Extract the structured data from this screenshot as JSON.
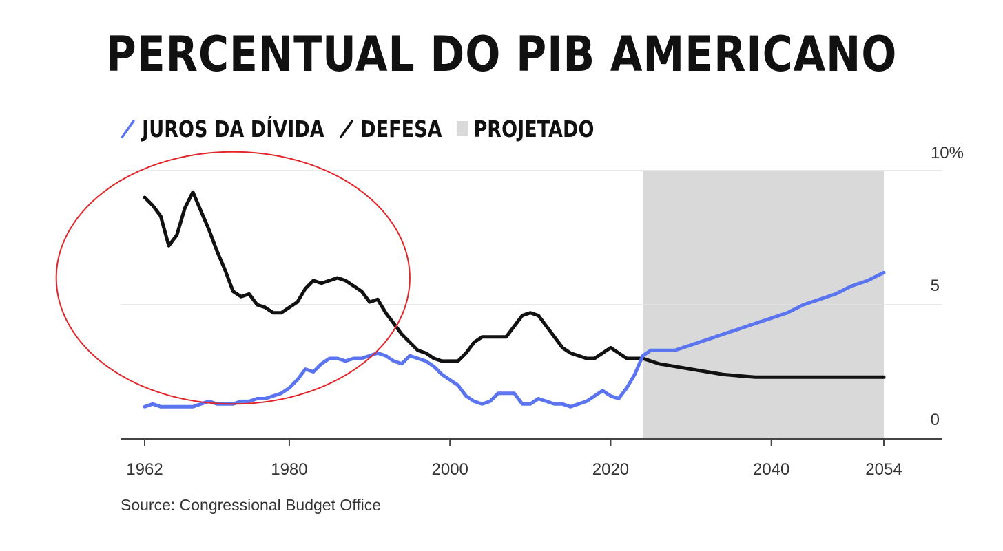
{
  "title": "PERCENTUAL DO PIB AMERICANO",
  "legend": {
    "juros": "JUROS DA DÍVIDA",
    "defesa": "DEFESA",
    "projetado": "PROJETADO"
  },
  "source": "Source: Congressional Budget Office",
  "colors": {
    "juros": "#5b74f0",
    "defesa": "#111111",
    "projetado": "#d9d9d9",
    "highlight_circle": "#e0262a",
    "grid": "#e3e3e3",
    "axis": "#444444"
  },
  "chart_data": {
    "type": "line",
    "x_range": [
      1962,
      2054
    ],
    "y_range": [
      0,
      10
    ],
    "x_ticks": [
      1962,
      1980,
      2000,
      2020,
      2040,
      2054
    ],
    "y_ticks": [
      {
        "value": 0,
        "label": "0"
      },
      {
        "value": 5,
        "label": "5"
      },
      {
        "value": 10,
        "label": "10%"
      }
    ],
    "gridlines": [
      5,
      10
    ],
    "projected_span": [
      2024,
      2054
    ],
    "series": [
      {
        "name": "DEFESA",
        "key": "defesa",
        "points": [
          [
            1962,
            9.0
          ],
          [
            1963,
            8.7
          ],
          [
            1964,
            8.3
          ],
          [
            1965,
            7.2
          ],
          [
            1966,
            7.6
          ],
          [
            1967,
            8.6
          ],
          [
            1968,
            9.2
          ],
          [
            1969,
            8.5
          ],
          [
            1970,
            7.8
          ],
          [
            1971,
            7.0
          ],
          [
            1972,
            6.3
          ],
          [
            1973,
            5.5
          ],
          [
            1974,
            5.3
          ],
          [
            1975,
            5.4
          ],
          [
            1976,
            5.0
          ],
          [
            1977,
            4.9
          ],
          [
            1978,
            4.7
          ],
          [
            1979,
            4.7
          ],
          [
            1980,
            4.9
          ],
          [
            1981,
            5.1
          ],
          [
            1982,
            5.6
          ],
          [
            1983,
            5.9
          ],
          [
            1984,
            5.8
          ],
          [
            1985,
            5.9
          ],
          [
            1986,
            6.0
          ],
          [
            1987,
            5.9
          ],
          [
            1988,
            5.7
          ],
          [
            1989,
            5.5
          ],
          [
            1990,
            5.1
          ],
          [
            1991,
            5.2
          ],
          [
            1992,
            4.7
          ],
          [
            1993,
            4.3
          ],
          [
            1994,
            3.9
          ],
          [
            1995,
            3.6
          ],
          [
            1996,
            3.3
          ],
          [
            1997,
            3.2
          ],
          [
            1998,
            3.0
          ],
          [
            1999,
            2.9
          ],
          [
            2000,
            2.9
          ],
          [
            2001,
            2.9
          ],
          [
            2002,
            3.2
          ],
          [
            2003,
            3.6
          ],
          [
            2004,
            3.8
          ],
          [
            2005,
            3.8
          ],
          [
            2006,
            3.8
          ],
          [
            2007,
            3.8
          ],
          [
            2008,
            4.2
          ],
          [
            2009,
            4.6
          ],
          [
            2010,
            4.7
          ],
          [
            2011,
            4.6
          ],
          [
            2012,
            4.2
          ],
          [
            2013,
            3.8
          ],
          [
            2014,
            3.4
          ],
          [
            2015,
            3.2
          ],
          [
            2016,
            3.1
          ],
          [
            2017,
            3.0
          ],
          [
            2018,
            3.0
          ],
          [
            2019,
            3.2
          ],
          [
            2020,
            3.4
          ],
          [
            2021,
            3.2
          ],
          [
            2022,
            3.0
          ],
          [
            2023,
            3.0
          ],
          [
            2024,
            3.0
          ],
          [
            2026,
            2.8
          ],
          [
            2028,
            2.7
          ],
          [
            2030,
            2.6
          ],
          [
            2032,
            2.5
          ],
          [
            2034,
            2.4
          ],
          [
            2036,
            2.35
          ],
          [
            2038,
            2.3
          ],
          [
            2040,
            2.3
          ],
          [
            2042,
            2.3
          ],
          [
            2044,
            2.3
          ],
          [
            2046,
            2.3
          ],
          [
            2048,
            2.3
          ],
          [
            2050,
            2.3
          ],
          [
            2052,
            2.3
          ],
          [
            2054,
            2.3
          ]
        ]
      },
      {
        "name": "JUROS DA DÍVIDA",
        "key": "juros",
        "points": [
          [
            1962,
            1.2
          ],
          [
            1963,
            1.3
          ],
          [
            1964,
            1.2
          ],
          [
            1965,
            1.2
          ],
          [
            1966,
            1.2
          ],
          [
            1967,
            1.2
          ],
          [
            1968,
            1.2
          ],
          [
            1969,
            1.3
          ],
          [
            1970,
            1.4
          ],
          [
            1971,
            1.3
          ],
          [
            1972,
            1.3
          ],
          [
            1973,
            1.3
          ],
          [
            1974,
            1.4
          ],
          [
            1975,
            1.4
          ],
          [
            1976,
            1.5
          ],
          [
            1977,
            1.5
          ],
          [
            1978,
            1.6
          ],
          [
            1979,
            1.7
          ],
          [
            1980,
            1.9
          ],
          [
            1981,
            2.2
          ],
          [
            1982,
            2.6
          ],
          [
            1983,
            2.5
          ],
          [
            1984,
            2.8
          ],
          [
            1985,
            3.0
          ],
          [
            1986,
            3.0
          ],
          [
            1987,
            2.9
          ],
          [
            1988,
            3.0
          ],
          [
            1989,
            3.0
          ],
          [
            1990,
            3.1
          ],
          [
            1991,
            3.2
          ],
          [
            1992,
            3.1
          ],
          [
            1993,
            2.9
          ],
          [
            1994,
            2.8
          ],
          [
            1995,
            3.1
          ],
          [
            1996,
            3.0
          ],
          [
            1997,
            2.9
          ],
          [
            1998,
            2.7
          ],
          [
            1999,
            2.4
          ],
          [
            2000,
            2.2
          ],
          [
            2001,
            2.0
          ],
          [
            2002,
            1.6
          ],
          [
            2003,
            1.4
          ],
          [
            2004,
            1.3
          ],
          [
            2005,
            1.4
          ],
          [
            2006,
            1.7
          ],
          [
            2007,
            1.7
          ],
          [
            2008,
            1.7
          ],
          [
            2009,
            1.3
          ],
          [
            2010,
            1.3
          ],
          [
            2011,
            1.5
          ],
          [
            2012,
            1.4
          ],
          [
            2013,
            1.3
          ],
          [
            2014,
            1.3
          ],
          [
            2015,
            1.2
          ],
          [
            2016,
            1.3
          ],
          [
            2017,
            1.4
          ],
          [
            2018,
            1.6
          ],
          [
            2019,
            1.8
          ],
          [
            2020,
            1.6
          ],
          [
            2021,
            1.5
          ],
          [
            2022,
            1.9
          ],
          [
            2023,
            2.4
          ],
          [
            2024,
            3.1
          ],
          [
            2025,
            3.3
          ],
          [
            2026,
            3.3
          ],
          [
            2028,
            3.3
          ],
          [
            2030,
            3.5
          ],
          [
            2032,
            3.7
          ],
          [
            2034,
            3.9
          ],
          [
            2036,
            4.1
          ],
          [
            2038,
            4.3
          ],
          [
            2040,
            4.5
          ],
          [
            2042,
            4.7
          ],
          [
            2044,
            5.0
          ],
          [
            2046,
            5.2
          ],
          [
            2048,
            5.4
          ],
          [
            2050,
            5.7
          ],
          [
            2052,
            5.9
          ],
          [
            2054,
            6.2
          ]
        ]
      }
    ],
    "annotation": {
      "type": "ellipse",
      "center": [
        1973,
        6.0
      ],
      "radii": [
        22,
        4.7
      ]
    }
  }
}
